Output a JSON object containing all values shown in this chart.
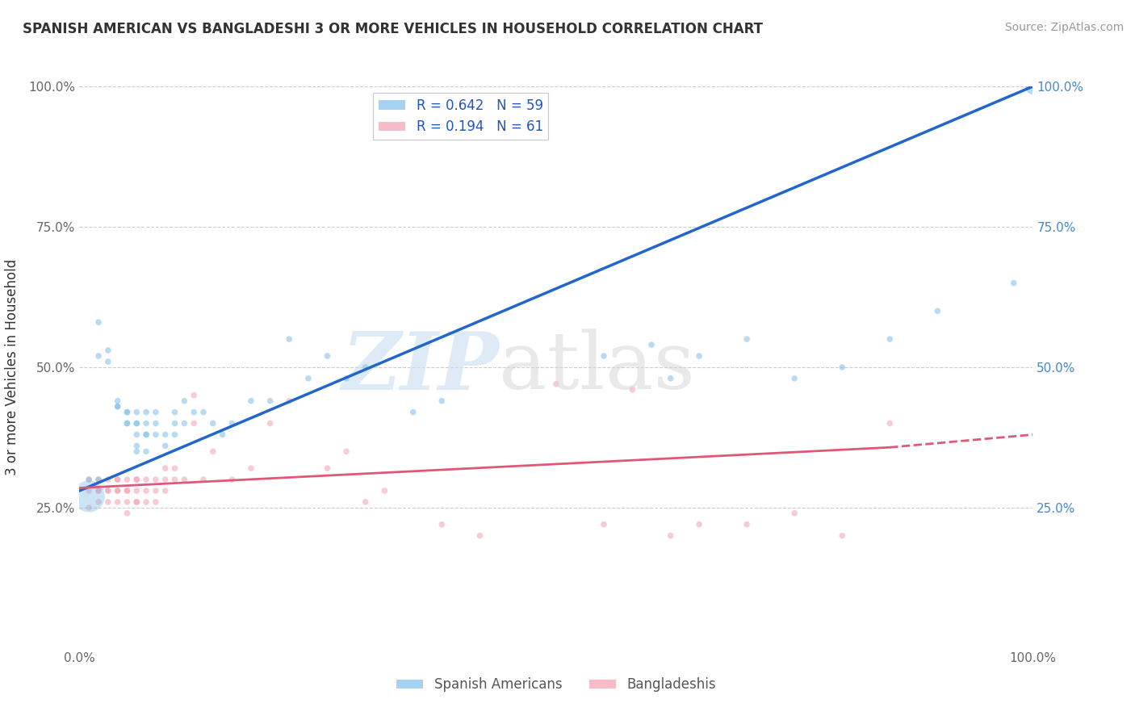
{
  "title": "SPANISH AMERICAN VS BANGLADESHI 3 OR MORE VEHICLES IN HOUSEHOLD CORRELATION CHART",
  "source": "Source: ZipAtlas.com",
  "ylabel": "3 or more Vehicles in Household",
  "xlim": [
    0,
    1.0
  ],
  "ylim": [
    0,
    1.0
  ],
  "grid_color": "#cccccc",
  "background_color": "#ffffff",
  "blue_color": "#7fbfea",
  "pink_color": "#f4a0b0",
  "blue_line_color": "#2266cc",
  "pink_line_color": "#e05878",
  "legend_R_blue": "0.642",
  "legend_N_blue": "59",
  "legend_R_pink": "0.194",
  "legend_N_pink": "61",
  "legend_label_blue": "Spanish Americans",
  "legend_label_pink": "Bangladeshis",
  "blue_line_x0": 0.0,
  "blue_line_y0": 0.28,
  "blue_line_x1": 1.0,
  "blue_line_y1": 1.0,
  "pink_line_x0": 0.0,
  "pink_line_y0": 0.285,
  "pink_line_x1": 1.0,
  "pink_line_y1": 0.38,
  "blue_scatter_x": [
    0.01,
    0.02,
    0.02,
    0.02,
    0.03,
    0.03,
    0.04,
    0.04,
    0.04,
    0.05,
    0.05,
    0.05,
    0.05,
    0.06,
    0.06,
    0.06,
    0.06,
    0.06,
    0.06,
    0.07,
    0.07,
    0.07,
    0.07,
    0.07,
    0.08,
    0.08,
    0.08,
    0.09,
    0.09,
    0.1,
    0.1,
    0.1,
    0.11,
    0.11,
    0.12,
    0.13,
    0.14,
    0.15,
    0.16,
    0.18,
    0.2,
    0.22,
    0.24,
    0.26,
    0.28,
    0.3,
    0.35,
    0.38,
    0.55,
    0.6,
    0.62,
    0.65,
    0.7,
    0.75,
    0.8,
    0.85,
    0.9,
    0.98,
    1.0
  ],
  "blue_scatter_y": [
    0.3,
    0.58,
    0.52,
    0.3,
    0.51,
    0.53,
    0.43,
    0.43,
    0.44,
    0.42,
    0.42,
    0.4,
    0.4,
    0.35,
    0.36,
    0.38,
    0.4,
    0.4,
    0.42,
    0.35,
    0.38,
    0.38,
    0.4,
    0.42,
    0.38,
    0.4,
    0.42,
    0.36,
    0.38,
    0.38,
    0.4,
    0.42,
    0.4,
    0.44,
    0.42,
    0.42,
    0.4,
    0.38,
    0.4,
    0.44,
    0.44,
    0.55,
    0.48,
    0.52,
    0.48,
    0.5,
    0.42,
    0.44,
    0.52,
    0.54,
    0.48,
    0.52,
    0.55,
    0.48,
    0.5,
    0.55,
    0.6,
    0.65,
    1.0
  ],
  "blue_scatter_size": [
    30,
    30,
    30,
    30,
    30,
    30,
    30,
    30,
    30,
    30,
    30,
    30,
    30,
    30,
    30,
    30,
    30,
    30,
    30,
    30,
    30,
    30,
    30,
    30,
    30,
    30,
    30,
    30,
    30,
    30,
    30,
    30,
    30,
    30,
    30,
    30,
    30,
    30,
    30,
    30,
    30,
    30,
    30,
    30,
    30,
    30,
    30,
    30,
    30,
    30,
    30,
    30,
    30,
    30,
    30,
    30,
    30,
    30,
    200
  ],
  "blue_large_x": [
    0.01
  ],
  "blue_large_y": [
    0.27
  ],
  "blue_large_size": [
    800
  ],
  "pink_scatter_x": [
    0.01,
    0.01,
    0.01,
    0.02,
    0.02,
    0.02,
    0.02,
    0.03,
    0.03,
    0.03,
    0.03,
    0.04,
    0.04,
    0.04,
    0.04,
    0.04,
    0.05,
    0.05,
    0.05,
    0.05,
    0.05,
    0.06,
    0.06,
    0.06,
    0.06,
    0.06,
    0.07,
    0.07,
    0.07,
    0.08,
    0.08,
    0.08,
    0.09,
    0.09,
    0.09,
    0.1,
    0.1,
    0.11,
    0.12,
    0.12,
    0.13,
    0.14,
    0.16,
    0.18,
    0.2,
    0.22,
    0.26,
    0.28,
    0.3,
    0.32,
    0.38,
    0.42,
    0.5,
    0.55,
    0.58,
    0.62,
    0.65,
    0.7,
    0.75,
    0.8,
    0.85
  ],
  "pink_scatter_y": [
    0.3,
    0.28,
    0.25,
    0.28,
    0.28,
    0.3,
    0.26,
    0.26,
    0.28,
    0.28,
    0.3,
    0.26,
    0.28,
    0.28,
    0.3,
    0.3,
    0.24,
    0.26,
    0.28,
    0.28,
    0.3,
    0.26,
    0.26,
    0.28,
    0.3,
    0.3,
    0.26,
    0.28,
    0.3,
    0.26,
    0.28,
    0.3,
    0.28,
    0.3,
    0.32,
    0.3,
    0.32,
    0.3,
    0.4,
    0.45,
    0.3,
    0.35,
    0.3,
    0.32,
    0.4,
    0.44,
    0.32,
    0.35,
    0.26,
    0.28,
    0.22,
    0.2,
    0.47,
    0.22,
    0.46,
    0.2,
    0.22,
    0.22,
    0.24,
    0.2,
    0.4
  ],
  "pink_scatter_size": [
    30,
    30,
    30,
    30,
    30,
    30,
    30,
    30,
    30,
    30,
    30,
    30,
    30,
    30,
    30,
    30,
    30,
    30,
    30,
    30,
    30,
    30,
    30,
    30,
    30,
    30,
    30,
    30,
    30,
    30,
    30,
    30,
    30,
    30,
    30,
    30,
    30,
    30,
    30,
    30,
    30,
    30,
    30,
    30,
    30,
    30,
    30,
    30,
    30,
    30,
    30,
    30,
    30,
    30,
    30,
    30,
    30,
    30,
    30,
    30,
    30
  ]
}
